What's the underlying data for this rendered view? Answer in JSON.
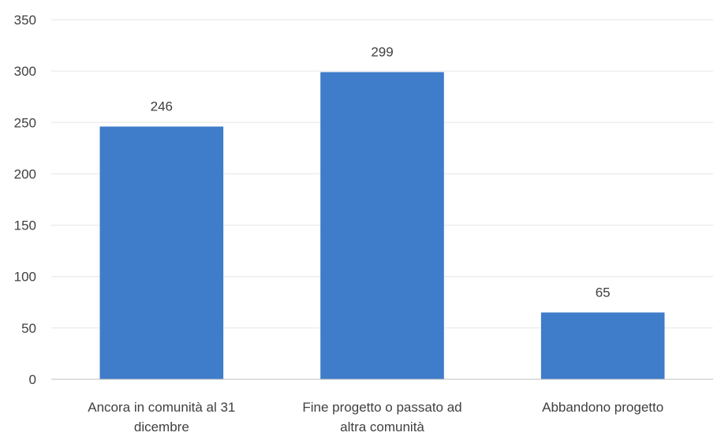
{
  "chart_data": {
    "type": "bar",
    "title": "",
    "xlabel": "",
    "ylabel": "",
    "categories": [
      [
        "Ancora in comunità al 31",
        "dicembre"
      ],
      [
        "Fine progetto o passato ad",
        "altra comunità"
      ],
      [
        "Abbandono progetto"
      ]
    ],
    "values": [
      246,
      299,
      65
    ],
    "data_labels": [
      "246",
      "299",
      "65"
    ],
    "y_ticks": [
      0,
      50,
      100,
      150,
      200,
      250,
      300,
      350
    ],
    "ylim": [
      0,
      350
    ],
    "grid": true,
    "legend": "none",
    "bar_color": "#3f7cc9",
    "grid_color": "#e6e6e6",
    "axis_color": "#bfbfbf",
    "text_color": "#404040"
  }
}
